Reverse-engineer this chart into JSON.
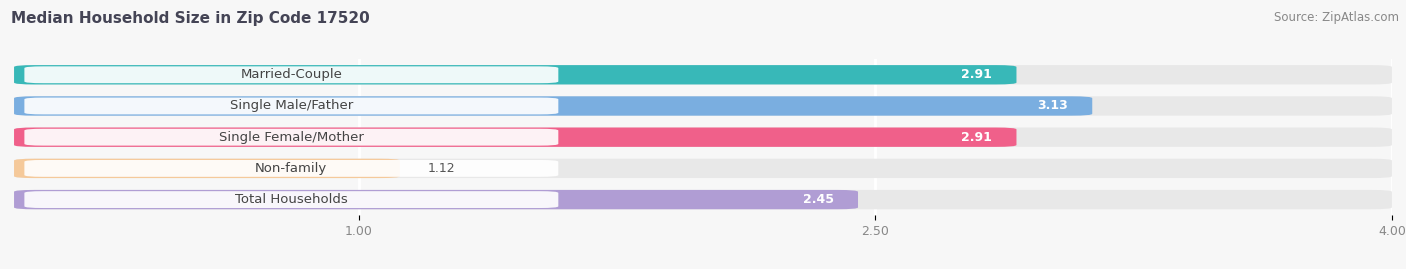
{
  "title": "Median Household Size in Zip Code 17520",
  "source": "Source: ZipAtlas.com",
  "categories": [
    "Married-Couple",
    "Single Male/Father",
    "Single Female/Mother",
    "Non-family",
    "Total Households"
  ],
  "values": [
    2.91,
    3.13,
    2.91,
    1.12,
    2.45
  ],
  "bar_colors": [
    "#38b8b8",
    "#7aaee0",
    "#f0608a",
    "#f5c99a",
    "#b09dd4"
  ],
  "xlim": [
    0,
    4.0
  ],
  "xticks": [
    1.0,
    2.5,
    4.0
  ],
  "xtick_labels": [
    "1.00",
    "2.50",
    "4.00"
  ],
  "title_fontsize": 11,
  "source_fontsize": 8.5,
  "label_fontsize": 9.5,
  "value_fontsize": 9,
  "background_color": "#f7f7f7",
  "bar_background_color": "#e8e8e8",
  "bar_height": 0.62,
  "value_inside_color": "white",
  "value_outside_color": "#555555"
}
